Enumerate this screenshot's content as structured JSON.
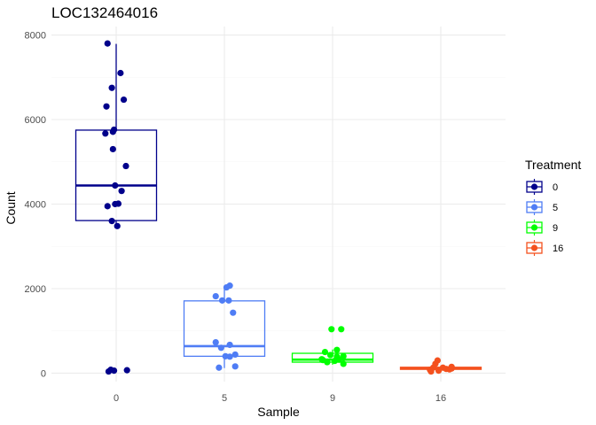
{
  "chart_data": {
    "type": "box",
    "title": "LOC132464016",
    "xlabel": "Sample",
    "ylabel": "Count",
    "ylim": [
      -200,
      8200
    ],
    "yticks": [
      0,
      2000,
      4000,
      6000,
      8000
    ],
    "grid": true,
    "legend": {
      "title": "Treatment",
      "position": "right"
    },
    "categories": [
      "0",
      "5",
      "9",
      "16"
    ],
    "series": [
      {
        "name": "0",
        "color": "#00008B",
        "box": {
          "q1": 3610,
          "median": 4440,
          "q3": 5750,
          "whisker_low": 3480,
          "whisker_high": 7790
        },
        "points": [
          [
            -0.08,
            7800
          ],
          [
            0.04,
            7100
          ],
          [
            -0.04,
            6750
          ],
          [
            0.07,
            6470
          ],
          [
            -0.09,
            6310
          ],
          [
            -0.02,
            5760
          ],
          [
            -0.1,
            5670
          ],
          [
            -0.03,
            5710
          ],
          [
            -0.03,
            5300
          ],
          [
            0.09,
            4900
          ],
          [
            -0.01,
            4440
          ],
          [
            0.05,
            4310
          ],
          [
            -0.08,
            3950
          ],
          [
            -0.01,
            4000
          ],
          [
            0.02,
            4010
          ],
          [
            -0.04,
            3600
          ],
          [
            0.01,
            3480
          ],
          [
            -0.07,
            40
          ],
          [
            -0.05,
            80
          ],
          [
            -0.02,
            60
          ],
          [
            0.1,
            70
          ]
        ]
      },
      {
        "name": "5",
        "color": "#4F7DF5",
        "box": {
          "q1": 400,
          "median": 640,
          "q3": 1710,
          "whisker_low": 120,
          "whisker_high": 2070
        },
        "points": [
          [
            0.05,
            2070
          ],
          [
            0.02,
            2030
          ],
          [
            -0.08,
            1820
          ],
          [
            -0.02,
            1720
          ],
          [
            0.04,
            1720
          ],
          [
            0.08,
            1430
          ],
          [
            -0.08,
            730
          ],
          [
            0.05,
            670
          ],
          [
            -0.03,
            600
          ],
          [
            0.1,
            440
          ],
          [
            0.01,
            400
          ],
          [
            0.05,
            390
          ],
          [
            -0.05,
            130
          ],
          [
            0.1,
            160
          ]
        ]
      },
      {
        "name": "9",
        "color": "#00FF00",
        "box": {
          "q1": 260,
          "median": 320,
          "q3": 470,
          "whisker_low": 200,
          "whisker_high": 560
        },
        "points": [
          [
            -0.01,
            1040
          ],
          [
            0.08,
            1040
          ],
          [
            0.04,
            550
          ],
          [
            -0.07,
            500
          ],
          [
            -0.02,
            430
          ],
          [
            0.1,
            400
          ],
          [
            0.04,
            390
          ],
          [
            -0.09,
            310
          ],
          [
            0.02,
            290
          ],
          [
            -0.05,
            260
          ],
          [
            0.1,
            220
          ],
          [
            -0.1,
            330
          ],
          [
            0.06,
            320
          ]
        ]
      },
      {
        "name": "16",
        "color": "#F4511E",
        "box": {
          "q1": 90,
          "median": 110,
          "q3": 140,
          "whisker_low": 40,
          "whisker_high": 180
        },
        "points": [
          [
            -0.03,
            300
          ],
          [
            -0.05,
            220
          ],
          [
            0.1,
            150
          ],
          [
            -0.07,
            130
          ],
          [
            0.02,
            130
          ],
          [
            0.05,
            100
          ],
          [
            -0.1,
            80
          ],
          [
            -0.02,
            60
          ],
          [
            0.08,
            90
          ],
          [
            0.1,
            110
          ],
          [
            -0.09,
            40
          ]
        ]
      }
    ]
  }
}
